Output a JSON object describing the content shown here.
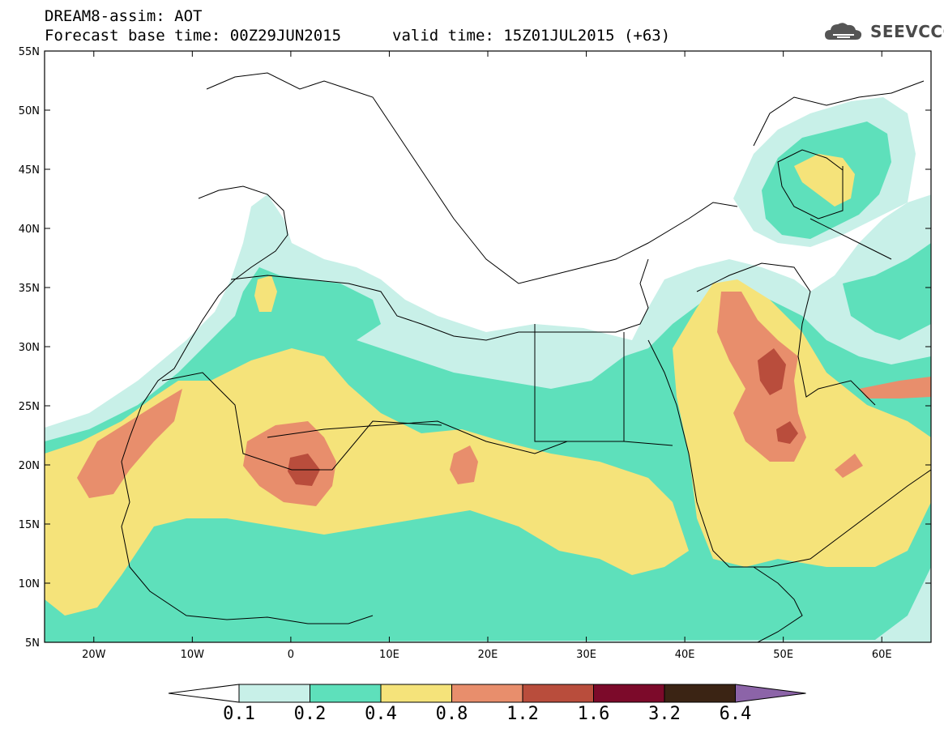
{
  "header": {
    "title": "DREAM8-assim: AOT",
    "base_time": "Forecast base time: 00Z29JUN2015",
    "valid_time": "valid time: 15Z01JUL2015 (+63)",
    "logo_text": "SEEVCCC"
  },
  "map": {
    "lon_range": [
      -25,
      65
    ],
    "lat_range": [
      5,
      55
    ],
    "lat_ticks": [
      "5N",
      "10N",
      "15N",
      "20N",
      "25N",
      "30N",
      "35N",
      "40N",
      "45N",
      "50N",
      "55N"
    ],
    "lon_ticks": [
      "20W",
      "10W",
      "0",
      "10E",
      "20E",
      "30E",
      "40E",
      "50E",
      "60E"
    ]
  },
  "colorbar": {
    "levels": [
      "0.1",
      "0.2",
      "0.4",
      "0.8",
      "1.2",
      "1.6",
      "3.2",
      "6.4"
    ],
    "colors": [
      "#c8f0e8",
      "#5ee0bb",
      "#f5e37a",
      "#e88e6c",
      "#b94d3c",
      "#7c0a2a",
      "#3b2414",
      "#8c64a8"
    ],
    "under_color": "#ffffff"
  }
}
